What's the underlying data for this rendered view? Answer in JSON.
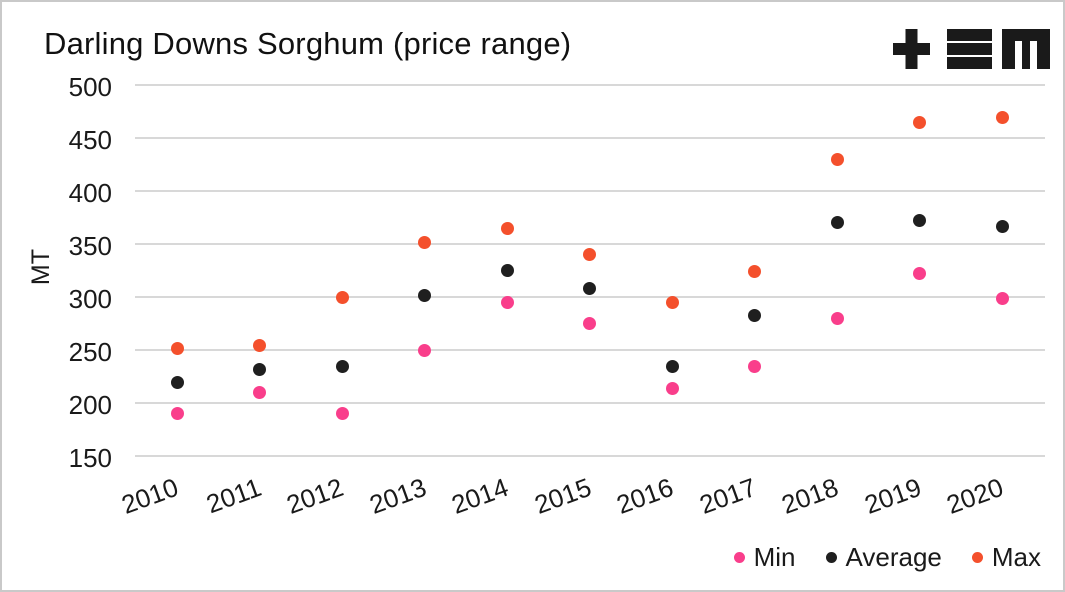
{
  "window": {
    "background_color": "#ffffff",
    "border_color": "#c9c9c9"
  },
  "header": {
    "logo": "tem-logo",
    "logo_color": "#1a1a1a"
  },
  "chart_data": {
    "type": "scatter",
    "title": "Darling Downs Sorghum (price range)",
    "xlabel": "",
    "ylabel": "MT",
    "categories": [
      "2010",
      "2011",
      "2012",
      "2013",
      "2014",
      "2015",
      "2016",
      "2017",
      "2018",
      "2019",
      "2020"
    ],
    "series": [
      {
        "name": "Min",
        "color": "#f93e8b",
        "values": [
          190,
          210,
          190,
          250,
          295,
          275,
          214,
          235,
          280,
          322,
          299
        ]
      },
      {
        "name": "Average",
        "color": "#1f1f1f",
        "values": [
          220,
          232,
          235,
          302,
          325,
          308,
          235,
          283,
          370,
          372,
          367
        ]
      },
      {
        "name": "Max",
        "color": "#f4502c",
        "values": [
          252,
          254,
          300,
          352,
          365,
          340,
          295,
          324,
          430,
          465,
          469
        ]
      }
    ],
    "ylim": [
      150,
      500
    ],
    "ytick_step": 50,
    "yticks": [
      "150",
      "200",
      "250",
      "300",
      "350",
      "400",
      "450",
      "500"
    ],
    "grid": "horizontal",
    "gridline_color": "#d8d8d8",
    "legend_position": "bottom-right",
    "legend_labels": [
      "Min",
      "Average",
      "Max"
    ]
  }
}
